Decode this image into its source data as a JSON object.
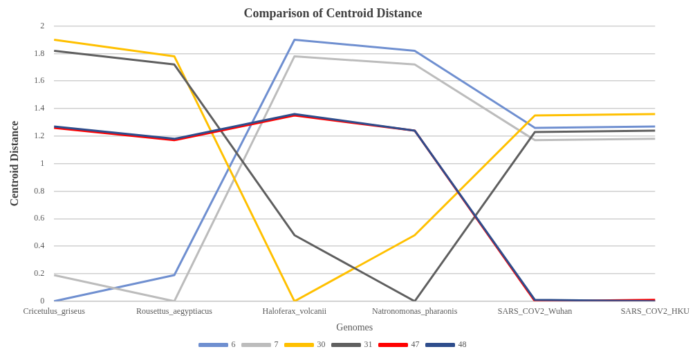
{
  "chart_data": {
    "type": "line",
    "title": "Comparison of Centroid Distance",
    "xlabel": "Genomes",
    "ylabel": "Centroid Distance",
    "categories": [
      "Cricetulus_griseus",
      "Rousettus_aegyptiacus",
      "Haloferax_volcanii",
      "Natronomonas_pharaonis",
      "SARS_COV2_Wuhan",
      "SARS_COV2_HKU"
    ],
    "series": [
      {
        "name": "6",
        "color": "#6f8fd0",
        "values": [
          0,
          0.19,
          1.9,
          1.82,
          1.26,
          1.27
        ]
      },
      {
        "name": "7",
        "color": "#bcbcbc",
        "values": [
          0.19,
          0,
          1.78,
          1.72,
          1.17,
          1.18
        ]
      },
      {
        "name": "30",
        "color": "#ffc000",
        "values": [
          1.9,
          1.78,
          0,
          0.48,
          1.35,
          1.36
        ]
      },
      {
        "name": "31",
        "color": "#5f5f5f",
        "values": [
          1.82,
          1.72,
          0.48,
          0,
          1.23,
          1.24
        ]
      },
      {
        "name": "47",
        "color": "#ff0000",
        "values": [
          1.26,
          1.17,
          1.35,
          1.24,
          0,
          0.01
        ]
      },
      {
        "name": "48",
        "color": "#2e4d8c",
        "values": [
          1.27,
          1.18,
          1.36,
          1.24,
          0.01,
          0
        ]
      }
    ],
    "ylim": [
      0,
      2
    ],
    "yticks": [
      0,
      0.2,
      0.4,
      0.6,
      0.8,
      1,
      1.2,
      1.4,
      1.6,
      1.8,
      2
    ],
    "grid": "y",
    "legend": "bottom",
    "marker": "none",
    "line_style": "solid"
  }
}
